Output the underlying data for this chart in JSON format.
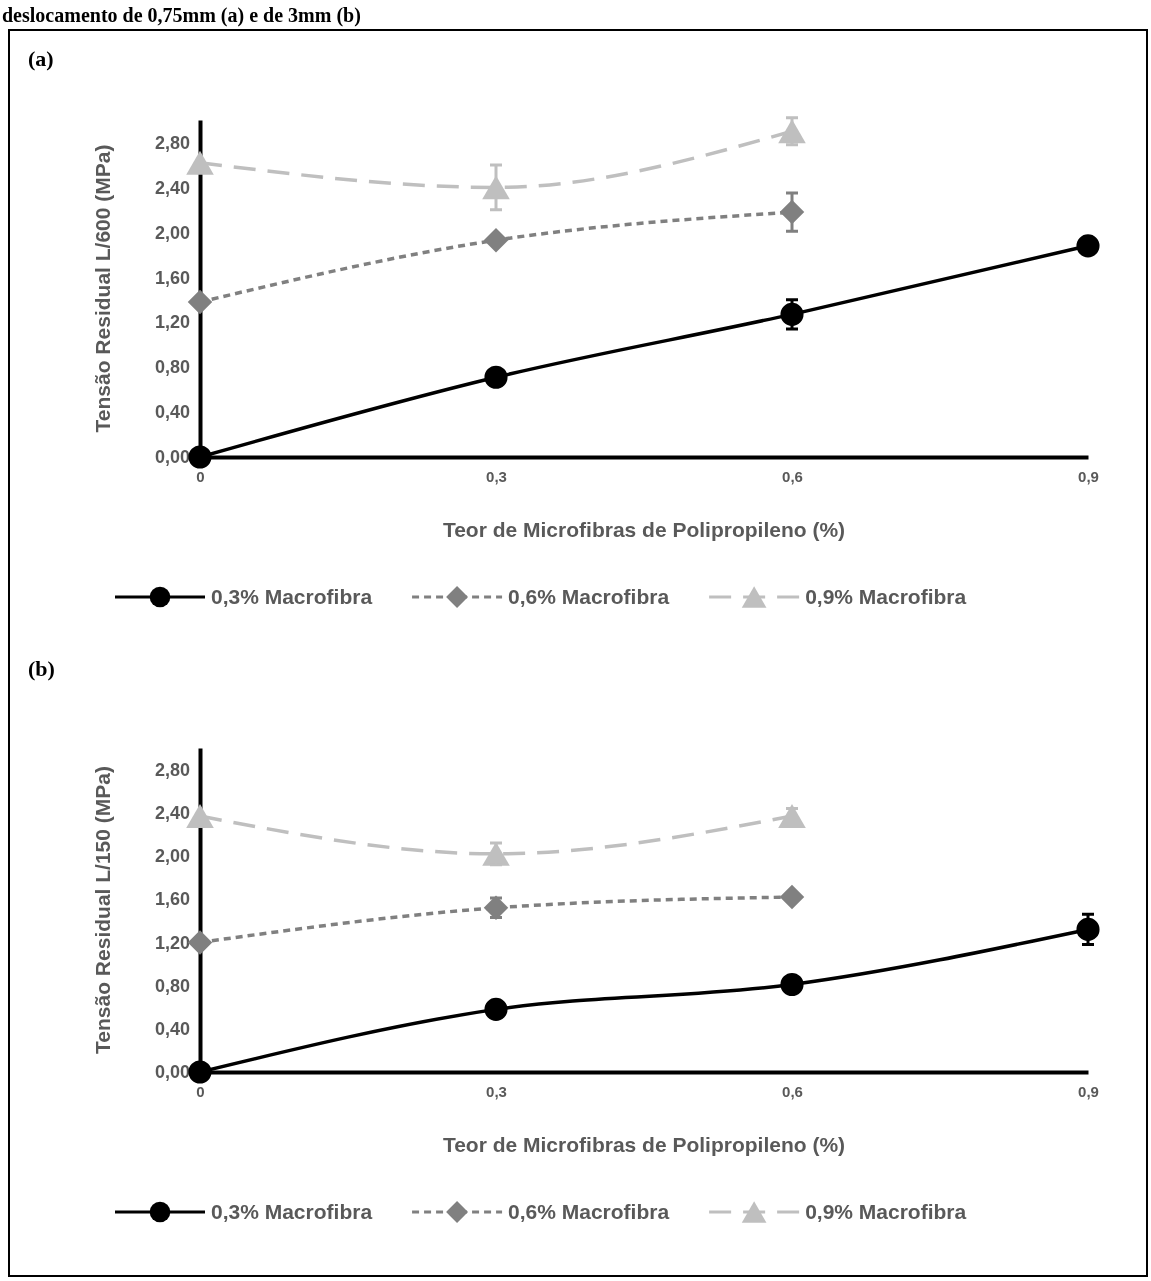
{
  "chart_data": [
    {
      "type": "line",
      "title": "(a)",
      "annotations": [
        "deslocamento de 0,75mm (a) e de 3mm (b)"
      ],
      "xlabel": "Teor de Microfibras de Polipropileno (%)",
      "ylabel": "Tensão Residual L/600 (MPa)",
      "xlim": [
        0,
        0.9
      ],
      "xticks": [
        0,
        {
          "value": 0.3,
          "label": "0,3"
        },
        {
          "value": 0.6,
          "label": "0,6"
        },
        {
          "value": 0.9,
          "label": "0,9"
        }
      ],
      "ylim": [
        0,
        3.0
      ],
      "yticks": [
        {
          "value": 0,
          "label": "0,00"
        },
        {
          "value": 0.4,
          "label": "0,40"
        },
        {
          "value": 0.8,
          "label": "0,80"
        },
        {
          "value": 1.2,
          "label": "1,20"
        },
        {
          "value": 1.6,
          "label": "1,60"
        },
        {
          "value": 2.0,
          "label": "2,00"
        },
        {
          "value": 2.4,
          "label": "2,40"
        },
        {
          "value": 2.8,
          "label": "2,80"
        }
      ],
      "grid": false,
      "legend": "bottom",
      "series": [
        {
          "name": "0,3% Macrofibra",
          "color": "#000000",
          "marker": "circle",
          "line_style": "solid",
          "x": [
            0,
            0.3,
            0.6,
            0.9
          ],
          "values": [
            0,
            0.71,
            1.27,
            1.88
          ],
          "errors": [
            null,
            null,
            0.13,
            null
          ]
        },
        {
          "name": "0,6% Macrofibra",
          "color": "#808080",
          "marker": "diamond",
          "line_style": "dotted",
          "x": [
            0,
            0.3,
            0.6
          ],
          "values": [
            1.38,
            1.93,
            2.18
          ],
          "errors": [
            null,
            null,
            0.17
          ]
        },
        {
          "name": "0,9% Macrofibra",
          "color": "#bfbfbf",
          "marker": "triangle",
          "line_style": "dashed",
          "x": [
            0,
            0.3,
            0.6
          ],
          "values": [
            2.62,
            2.4,
            2.9
          ],
          "errors": [
            null,
            0.2,
            0.12
          ]
        }
      ]
    },
    {
      "type": "line",
      "title": "(b)",
      "xlabel": "Teor de Microfibras de Polipropileno (%)",
      "ylabel": "Tensão Residual L/150 (MPa)",
      "xlim": [
        0,
        0.9
      ],
      "xticks": [
        0,
        {
          "value": 0.3,
          "label": "0,3"
        },
        {
          "value": 0.6,
          "label": "0,6"
        },
        {
          "value": 0.9,
          "label": "0,9"
        }
      ],
      "ylim": [
        0,
        3.0
      ],
      "yticks": [
        {
          "value": 0,
          "label": "0,00"
        },
        {
          "value": 0.4,
          "label": "0,40"
        },
        {
          "value": 0.8,
          "label": "0,80"
        },
        {
          "value": 1.2,
          "label": "1,20"
        },
        {
          "value": 1.6,
          "label": "1,60"
        },
        {
          "value": 2.0,
          "label": "2,00"
        },
        {
          "value": 2.4,
          "label": "2,40"
        },
        {
          "value": 2.8,
          "label": "2,80"
        }
      ],
      "grid": false,
      "legend": "bottom",
      "series": [
        {
          "name": "0,3% Macrofibra",
          "color": "#000000",
          "marker": "circle",
          "line_style": "solid",
          "x": [
            0,
            0.3,
            0.6,
            0.9
          ],
          "values": [
            0,
            0.58,
            0.81,
            1.32
          ],
          "errors": [
            null,
            null,
            null,
            0.14
          ]
        },
        {
          "name": "0,6% Macrofibra",
          "color": "#808080",
          "marker": "diamond",
          "line_style": "dotted",
          "x": [
            0,
            0.3,
            0.6
          ],
          "values": [
            1.2,
            1.52,
            1.62
          ],
          "errors": [
            null,
            0.09,
            null
          ]
        },
        {
          "name": "0,9% Macrofibra",
          "color": "#bfbfbf",
          "marker": "triangle",
          "line_style": "dashed",
          "x": [
            0,
            0.3,
            0.6
          ],
          "values": [
            2.37,
            2.02,
            2.37
          ],
          "errors": [
            null,
            0.1,
            0.07
          ]
        }
      ]
    }
  ]
}
